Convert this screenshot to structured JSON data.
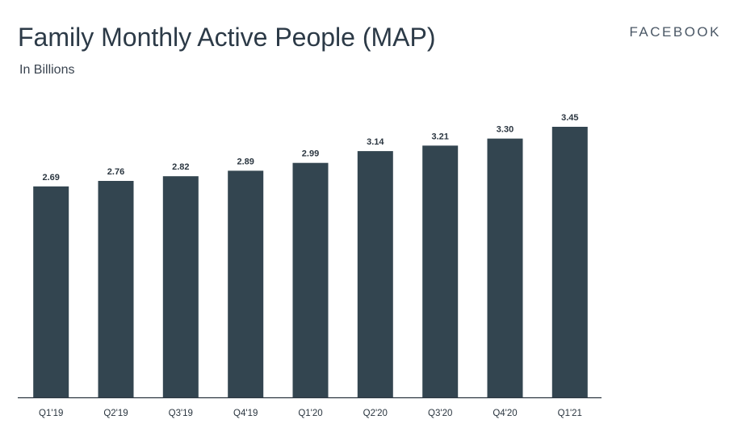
{
  "header": {
    "title": "Family Monthly Active People (MAP)",
    "subtitle": "In Billions",
    "brand": "FACEBOOK"
  },
  "colors": {
    "bar": "#334550",
    "axis": "#2b3640",
    "label": "#2b3640",
    "title": "#2c3a47"
  },
  "chart_data": {
    "type": "bar",
    "title": "Family Monthly Active People (MAP)",
    "subtitle": "In Billions",
    "categories": [
      "Q1'19",
      "Q2'19",
      "Q3'19",
      "Q4'19",
      "Q1'20",
      "Q2'20",
      "Q3'20",
      "Q4'20",
      "Q1'21"
    ],
    "values": [
      2.69,
      2.76,
      2.82,
      2.89,
      2.99,
      3.14,
      3.21,
      3.3,
      3.45
    ],
    "data_labels": [
      "2.69",
      "2.76",
      "2.82",
      "2.89",
      "2.99",
      "3.14",
      "3.21",
      "3.30",
      "3.45"
    ],
    "xlabel": "",
    "ylabel": "",
    "ylim": [
      0,
      3.6
    ],
    "grid": false,
    "legend": "none"
  }
}
